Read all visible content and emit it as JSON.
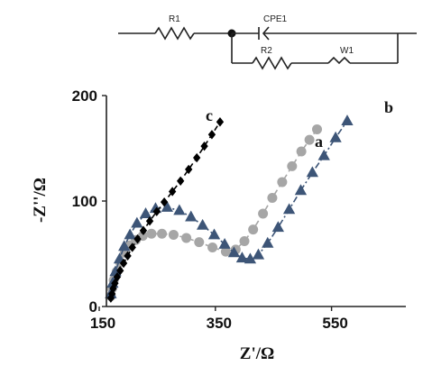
{
  "circuit": {
    "labels": {
      "r1": "R1",
      "cpe1": "CPE1",
      "r2": "R2",
      "w1": "W1"
    }
  },
  "chart_data": {
    "type": "scatter",
    "title": "",
    "xlabel": "Z'/Ω",
    "ylabel": "-Z''/Ω",
    "xlim": [
      150,
      650
    ],
    "ylim": [
      0,
      200
    ],
    "xticks": [
      150,
      350,
      550
    ],
    "yticks": [
      0,
      100,
      200
    ],
    "grid": false,
    "series": [
      {
        "name": "a",
        "color": "#a6a6a6",
        "marker": "circle",
        "line": "dashed",
        "x": [
          170,
          172,
          175,
          180,
          186,
          194,
          203,
          213,
          225,
          240,
          258,
          278,
          300,
          322,
          345,
          368,
          385,
          400,
          415,
          432,
          448,
          465,
          482,
          498,
          512,
          525
        ],
        "y": [
          10,
          17,
          25,
          33,
          42,
          51,
          58,
          63,
          67,
          69,
          69,
          68,
          65,
          61,
          56,
          52,
          54,
          62,
          73,
          88,
          103,
          118,
          133,
          147,
          158,
          168
        ]
      },
      {
        "name": "b",
        "color": "#3d5577",
        "marker": "triangle",
        "line": "dashdot",
        "x": [
          170,
          173,
          178,
          185,
          193,
          203,
          215,
          230,
          247,
          267,
          288,
          308,
          328,
          348,
          366,
          382,
          396,
          410,
          424,
          440,
          458,
          477,
          497,
          517,
          537,
          557,
          577
        ],
        "y": [
          12,
          22,
          33,
          45,
          57,
          68,
          79,
          88,
          93,
          94,
          91,
          85,
          77,
          68,
          59,
          51,
          46,
          45,
          49,
          60,
          75,
          92,
          110,
          127,
          143,
          160,
          176
        ]
      },
      {
        "name": "c",
        "color": "#000000",
        "marker": "diamond",
        "line": "dashed",
        "x": [
          170,
          172,
          174,
          177,
          181,
          186,
          192,
          199,
          207,
          216,
          226,
          237,
          249,
          262,
          276,
          290,
          304,
          318,
          331,
          344,
          358
        ],
        "y": [
          8,
          12,
          17,
          22,
          28,
          34,
          41,
          48,
          56,
          64,
          72,
          81,
          90,
          99,
          109,
          119,
          130,
          141,
          152,
          163,
          175
        ]
      }
    ]
  }
}
